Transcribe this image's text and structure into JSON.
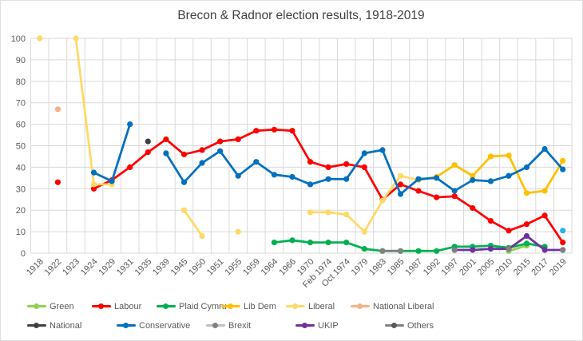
{
  "chart_data": {
    "type": "line",
    "title": "Brecon & Radnor election results, 1918-2019",
    "ylabel": "",
    "xlabel": "",
    "ylim": [
      0,
      100
    ],
    "ytick_step": 10,
    "grid": true,
    "legend_position": "bottom",
    "axis_color": "#595959",
    "grid_color": "#d9d9d9",
    "title_color": "#404040",
    "categories": [
      "1918",
      "1922",
      "1923",
      "1924",
      "1929",
      "1931",
      "1935",
      "1939",
      "1945",
      "1950",
      "1951",
      "1955",
      "1959",
      "1964",
      "1966",
      "1970",
      "Feb 1974",
      "Oct 1974",
      "1979",
      "1983",
      "1985",
      "1987",
      "1992",
      "1997",
      "2001",
      "2005",
      "2010",
      "2015",
      "2017",
      "2019"
    ],
    "series": [
      {
        "name": "Green",
        "color": "#92d050",
        "values": [
          null,
          null,
          null,
          null,
          null,
          null,
          null,
          null,
          null,
          null,
          null,
          null,
          null,
          null,
          null,
          null,
          null,
          null,
          null,
          null,
          null,
          null,
          null,
          null,
          null,
          null,
          1,
          3.5,
          null,
          null
        ]
      },
      {
        "name": "Labour",
        "color": "#ff0000",
        "values": [
          null,
          33,
          null,
          30,
          34,
          40,
          47,
          53,
          46,
          48,
          52,
          53,
          57,
          57.5,
          57,
          42.5,
          40,
          41.5,
          40,
          25,
          32,
          29,
          26,
          26.5,
          21,
          15,
          10.5,
          13.5,
          17.5,
          5
        ]
      },
      {
        "name": "Plaid Cymru",
        "color": "#00b050",
        "values": [
          null,
          null,
          null,
          null,
          null,
          null,
          null,
          null,
          null,
          null,
          null,
          null,
          null,
          5,
          6,
          5,
          5,
          5,
          2,
          1,
          1,
          1,
          1,
          3,
          3,
          3.5,
          2.5,
          4.5,
          3,
          null
        ]
      },
      {
        "name": "Lib Dem",
        "color": "#ffc000",
        "values": [
          null,
          null,
          null,
          null,
          null,
          null,
          null,
          null,
          null,
          null,
          null,
          null,
          null,
          null,
          null,
          null,
          null,
          null,
          null,
          null,
          null,
          34,
          35.5,
          41,
          36,
          45,
          45.5,
          28,
          29,
          43
        ]
      },
      {
        "name": "Liberal",
        "color": "#ffd966",
        "values": [
          100,
          null,
          100,
          32,
          32,
          null,
          null,
          null,
          20,
          8,
          null,
          10,
          null,
          null,
          null,
          19,
          19,
          18,
          10,
          24.5,
          36,
          34,
          null,
          null,
          null,
          null,
          null,
          null,
          null,
          null
        ]
      },
      {
        "name": "National Liberal",
        "color": "#f4b183",
        "values": [
          null,
          67,
          null,
          null,
          null,
          null,
          null,
          null,
          null,
          null,
          null,
          null,
          null,
          null,
          null,
          null,
          null,
          null,
          null,
          null,
          null,
          null,
          null,
          null,
          null,
          null,
          null,
          null,
          null,
          null
        ]
      },
      {
        "name": "National",
        "color": "#404040",
        "values": [
          null,
          null,
          null,
          null,
          null,
          null,
          52,
          null,
          null,
          null,
          null,
          null,
          null,
          null,
          null,
          null,
          null,
          null,
          null,
          null,
          null,
          null,
          null,
          null,
          null,
          null,
          null,
          null,
          null,
          null
        ]
      },
      {
        "name": "Conservative",
        "color": "#0070c0",
        "values": [
          null,
          null,
          null,
          37.5,
          33.5,
          60,
          null,
          46.5,
          33,
          42,
          47.5,
          36,
          42.5,
          36.5,
          35.5,
          32,
          34.5,
          34.5,
          46.5,
          48,
          27.5,
          34.5,
          35,
          29,
          34,
          33.5,
          36,
          40,
          48.5,
          39
        ]
      },
      {
        "name": "Brexit",
        "color": "#2bb0e8",
        "legend_line": "#bfbfbf",
        "legend_dot": "#7f7f7f",
        "values": [
          null,
          null,
          null,
          null,
          null,
          null,
          null,
          null,
          null,
          null,
          null,
          null,
          null,
          null,
          null,
          null,
          null,
          null,
          null,
          null,
          null,
          null,
          null,
          null,
          null,
          null,
          null,
          null,
          null,
          10.5
        ]
      },
      {
        "name": "UKIP",
        "color": "#7030a0",
        "values": [
          null,
          null,
          null,
          null,
          null,
          null,
          null,
          null,
          null,
          null,
          null,
          null,
          null,
          null,
          null,
          null,
          null,
          null,
          null,
          null,
          null,
          null,
          null,
          1.5,
          1.5,
          2,
          2,
          8,
          1.5,
          1.5
        ]
      },
      {
        "name": "Others",
        "color": "#808080",
        "legend_dot": "#595959",
        "values": [
          null,
          null,
          null,
          null,
          null,
          null,
          null,
          null,
          null,
          null,
          null,
          null,
          null,
          null,
          null,
          null,
          null,
          null,
          null,
          1,
          1,
          null,
          null,
          1.5,
          null,
          null,
          2,
          null,
          null,
          1.5
        ]
      }
    ],
    "legend_rows": [
      [
        "Green",
        "Labour",
        "Plaid Cymru",
        "Lib Dem",
        "Liberal",
        "National Liberal"
      ],
      [
        "National",
        "Conservative",
        "Brexit",
        "UKIP",
        "Others"
      ]
    ]
  }
}
